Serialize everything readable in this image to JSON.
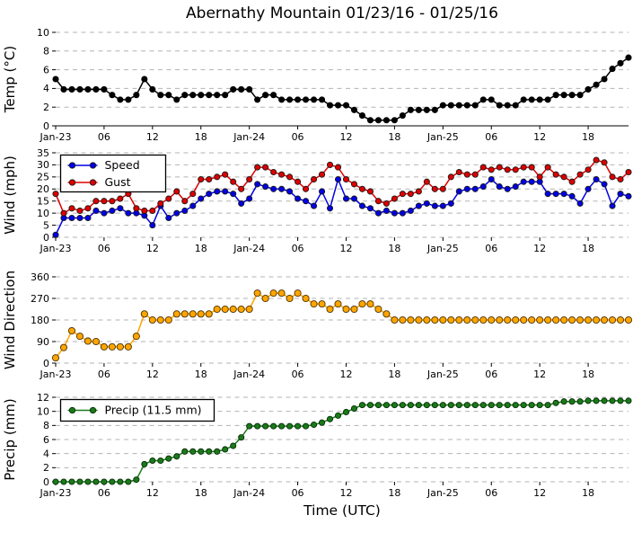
{
  "figure": {
    "title": "Abernathy Mountain 01/23/16 - 01/25/16",
    "xlabel": "Time (UTC)",
    "background_color": "#ffffff",
    "grid_color": "#b3b3b3",
    "text_color": "#000000"
  },
  "chart_data": {
    "type": "line",
    "title": "Abernathy Mountain 01/23/16 - 01/25/16",
    "xlabel": "Time (UTC)",
    "x_unit": "hours since 01/23/16 00:00 UTC",
    "x_points": 72,
    "x_range": [
      0,
      71
    ],
    "x_tick_positions": [
      0,
      6,
      12,
      18,
      24,
      30,
      36,
      42,
      48,
      54,
      60,
      66
    ],
    "x_tick_labels": [
      "Jan-23",
      "06",
      "12",
      "18",
      "Jan-24",
      "06",
      "12",
      "18",
      "Jan-25",
      "06",
      "12",
      "18"
    ],
    "grid": true,
    "panels": [
      {
        "id": "temp",
        "ylabel": "Temp (°C)",
        "ylim": [
          0,
          10
        ],
        "yticks": [
          0,
          2,
          4,
          6,
          8,
          10
        ],
        "legend": null,
        "series": [
          {
            "name": "Temp",
            "color": "#000000",
            "marker_edge": "#000000",
            "values": [
              5.0,
              3.9,
              3.9,
              3.9,
              3.9,
              3.9,
              3.9,
              3.3,
              2.8,
              2.8,
              3.3,
              5.0,
              3.9,
              3.3,
              3.3,
              2.8,
              3.3,
              3.3,
              3.3,
              3.3,
              3.3,
              3.3,
              3.9,
              3.9,
              3.9,
              2.8,
              3.3,
              3.3,
              2.8,
              2.8,
              2.8,
              2.8,
              2.8,
              2.8,
              2.2,
              2.2,
              2.2,
              1.7,
              1.1,
              0.6,
              0.6,
              0.6,
              0.6,
              1.1,
              1.7,
              1.7,
              1.7,
              1.7,
              2.2,
              2.2,
              2.2,
              2.2,
              2.2,
              2.8,
              2.8,
              2.2,
              2.2,
              2.2,
              2.8,
              2.8,
              2.8,
              2.8,
              3.3,
              3.3,
              3.3,
              3.3,
              3.9,
              4.4,
              5.0,
              6.1,
              6.7,
              7.3
            ]
          }
        ]
      },
      {
        "id": "wind",
        "ylabel": "Wind (mph)",
        "ylim": [
          0,
          35
        ],
        "yticks": [
          0,
          5,
          10,
          15,
          20,
          25,
          30,
          35
        ],
        "legend": {
          "position": "upper-left",
          "entries": [
            "Speed",
            "Gust"
          ]
        },
        "series": [
          {
            "name": "Speed",
            "color": "#0000e6",
            "marker_edge": "#1a1a1a",
            "values": [
              1,
              8,
              8,
              8,
              8,
              11,
              10,
              11,
              12,
              10,
              10,
              9,
              5,
              13,
              8,
              10,
              11,
              13,
              16,
              18,
              19,
              19,
              18,
              14,
              16,
              22,
              21,
              20,
              20,
              19,
              16,
              15,
              13,
              19,
              12,
              24,
              16,
              16,
              13,
              12,
              10,
              11,
              10,
              10,
              11,
              13,
              14,
              13,
              13,
              14,
              19,
              20,
              20,
              21,
              24,
              21,
              20,
              21,
              23,
              23,
              23,
              18,
              18,
              18,
              17,
              14,
              20,
              24,
              22,
              13,
              18,
              17
            ]
          },
          {
            "name": "Gust",
            "color": "#dd0000",
            "marker_edge": "#1a1a1a",
            "values": [
              18,
              10,
              12,
              11,
              12,
              15,
              15,
              15,
              16,
              18,
              12,
              11,
              11,
              14,
              16,
              19,
              15,
              18,
              24,
              24,
              25,
              26,
              23,
              20,
              24,
              29,
              29,
              27,
              26,
              25,
              23,
              20,
              24,
              26,
              30,
              29,
              24,
              22,
              20,
              19,
              15,
              14,
              16,
              18,
              18,
              19,
              23,
              20,
              20,
              25,
              27,
              26,
              26,
              29,
              28,
              29,
              28,
              28,
              29,
              29,
              25,
              29,
              26,
              25,
              23,
              26,
              28,
              32,
              31,
              25,
              24,
              27
            ]
          }
        ]
      },
      {
        "id": "wind-direction",
        "ylabel": "Wind Direction",
        "ylim": [
          0,
          360
        ],
        "yticks": [
          0,
          90,
          180,
          270,
          360
        ],
        "legend": null,
        "series": [
          {
            "name": "Wind Direction",
            "color": "#ffa500",
            "marker_edge": "#4d3300",
            "values": [
              22,
              65,
              135,
              112,
              92,
              90,
              68,
              68,
              68,
              68,
              112,
              205,
              180,
              180,
              180,
              205,
              205,
              205,
              205,
              205,
              225,
              225,
              225,
              225,
              225,
              292,
              270,
              292,
              292,
              270,
              292,
              270,
              247,
              247,
              225,
              247,
              225,
              225,
              247,
              247,
              225,
              205,
              180,
              180,
              180,
              180,
              180,
              180,
              180,
              180,
              180,
              180,
              180,
              180,
              180,
              180,
              180,
              180,
              180,
              180,
              180,
              180,
              180,
              180,
              180,
              180,
              180,
              180,
              180,
              180,
              180,
              180
            ]
          }
        ]
      },
      {
        "id": "precip",
        "ylabel": "Precip (mm)",
        "ylim": [
          0,
          12
        ],
        "yticks": [
          0,
          2,
          4,
          6,
          8,
          10,
          12
        ],
        "legend": {
          "position": "upper-left",
          "entries": [
            "Precip (11.5 mm)"
          ]
        },
        "series": [
          {
            "name": "Precip (11.5 mm)",
            "color": "#1a7a1a",
            "marker_edge": "#062e06",
            "values": [
              0,
              0,
              0,
              0,
              0,
              0,
              0,
              0,
              0,
              0,
              0.3,
              2.5,
              3.0,
              3.0,
              3.3,
              3.6,
              4.3,
              4.3,
              4.3,
              4.3,
              4.3,
              4.6,
              5.1,
              6.3,
              7.9,
              7.9,
              7.9,
              7.9,
              7.9,
              7.9,
              7.9,
              7.9,
              8.1,
              8.4,
              8.9,
              9.4,
              9.9,
              10.4,
              10.9,
              10.9,
              10.9,
              10.9,
              10.9,
              10.9,
              10.9,
              10.9,
              10.9,
              10.9,
              10.9,
              10.9,
              10.9,
              10.9,
              10.9,
              10.9,
              10.9,
              10.9,
              10.9,
              10.9,
              10.9,
              10.9,
              10.9,
              10.9,
              11.2,
              11.4,
              11.4,
              11.4,
              11.5,
              11.5,
              11.5,
              11.5,
              11.5,
              11.5
            ]
          }
        ]
      }
    ]
  }
}
